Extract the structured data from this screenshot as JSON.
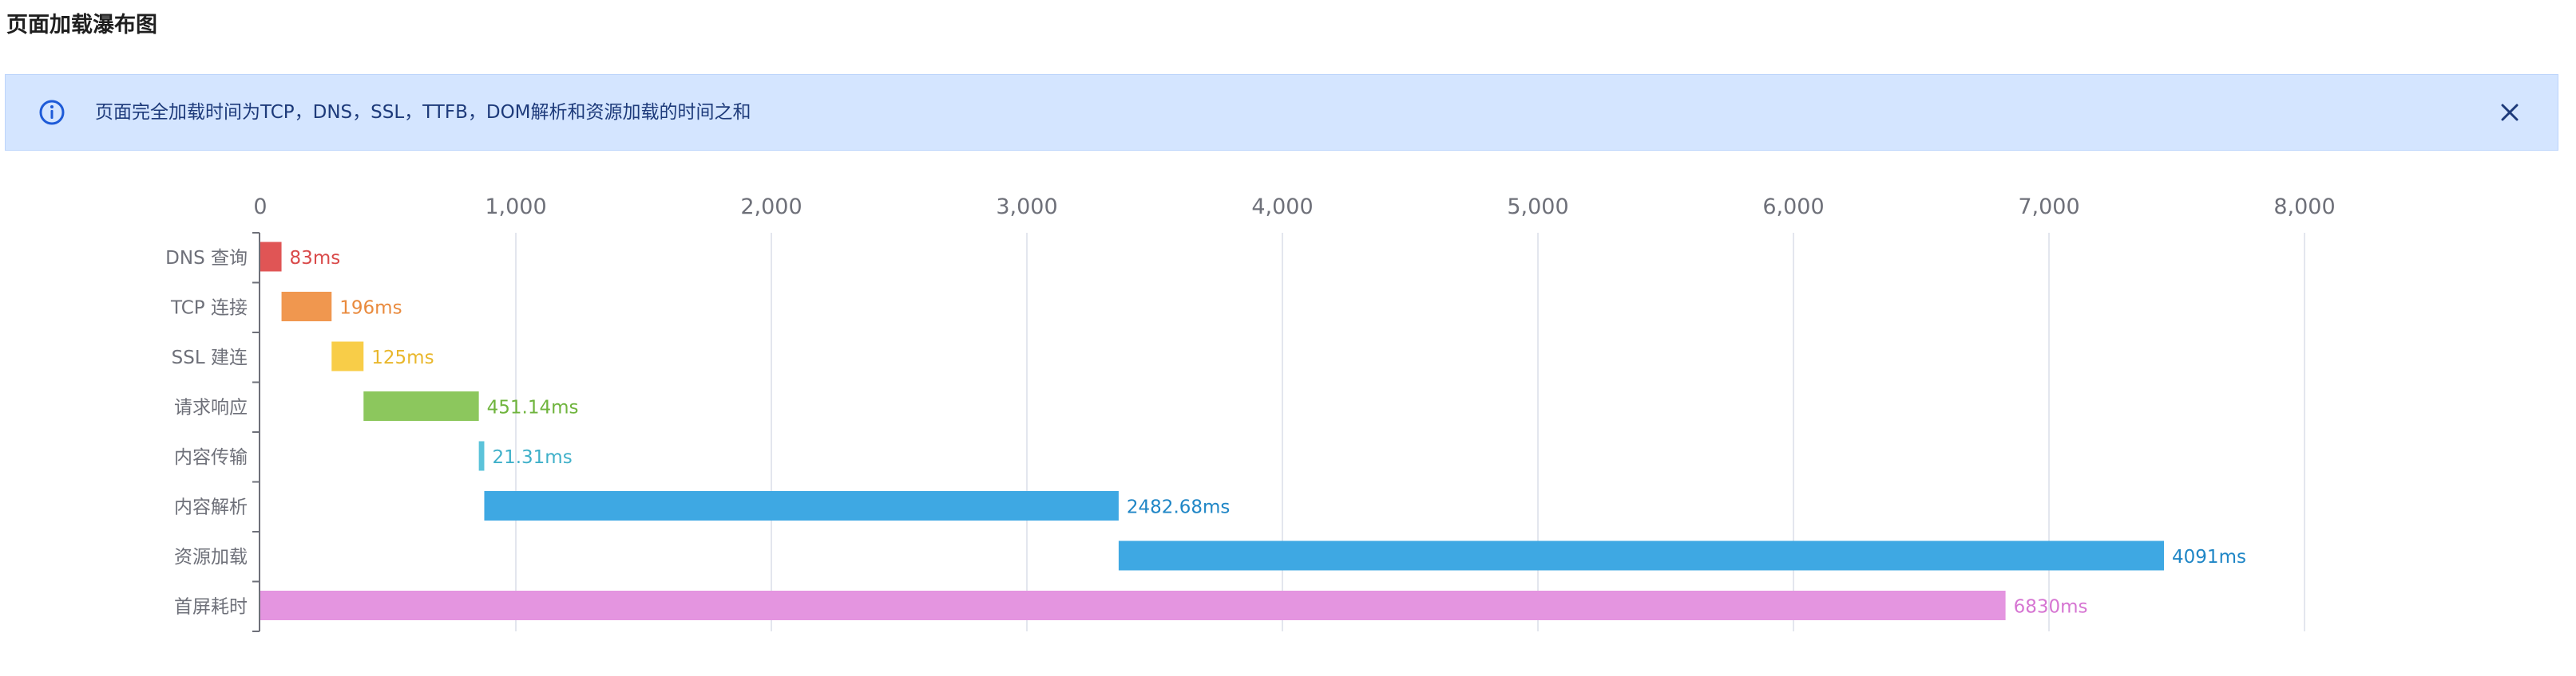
{
  "page": {
    "title": "页面加载瀑布图"
  },
  "banner": {
    "text": "页面完全加载时间为TCP，DNS，SSL，TTFB，DOM解析和资源加载的时间之和",
    "info_icon": "info-circle-icon",
    "close_icon": "close-icon",
    "color": "#d4e5ff",
    "text_color": "#1d3a7a"
  },
  "chart_data": {
    "type": "bar",
    "subtype": "horizontal-waterfall",
    "title": "",
    "xlabel": "",
    "ylabel": "",
    "xlim": [
      0,
      8000
    ],
    "x_ticks": [
      0,
      1000,
      2000,
      3000,
      4000,
      5000,
      6000,
      7000,
      8000
    ],
    "x_tick_labels": [
      "0",
      "1,000",
      "2,000",
      "3,000",
      "4,000",
      "5,000",
      "6,000",
      "7,000",
      "8,000"
    ],
    "x_axis_position": "top",
    "grid": "vertical",
    "legend": "none",
    "categories": [
      "DNS 查询",
      "TCP 连接",
      "SSL 建连",
      "请求响应",
      "内容传输",
      "内容解析",
      "资源加载",
      "首屏耗时"
    ],
    "start": [
      0,
      83,
      279,
      404,
      855.14,
      876.45,
      3359.13,
      0
    ],
    "values": [
      83,
      196,
      125,
      451.14,
      21.31,
      2482.68,
      4091,
      6830
    ],
    "data_labels": [
      "83ms",
      "196ms",
      "125ms",
      "451.14ms",
      "21.31ms",
      "2482.68ms",
      "4091ms",
      "6830ms"
    ],
    "bar_colors": [
      "#e05555",
      "#f0974f",
      "#f8cd48",
      "#8cc75d",
      "#5bc3da",
      "#3ea8e3",
      "#3ea8e3",
      "#e495e0"
    ],
    "label_colors": [
      "#d94a4a",
      "#e98a3d",
      "#e9b72c",
      "#6fb43d",
      "#3fb0c9",
      "#1f86c6",
      "#1f86c6",
      "#d675d2"
    ]
  }
}
